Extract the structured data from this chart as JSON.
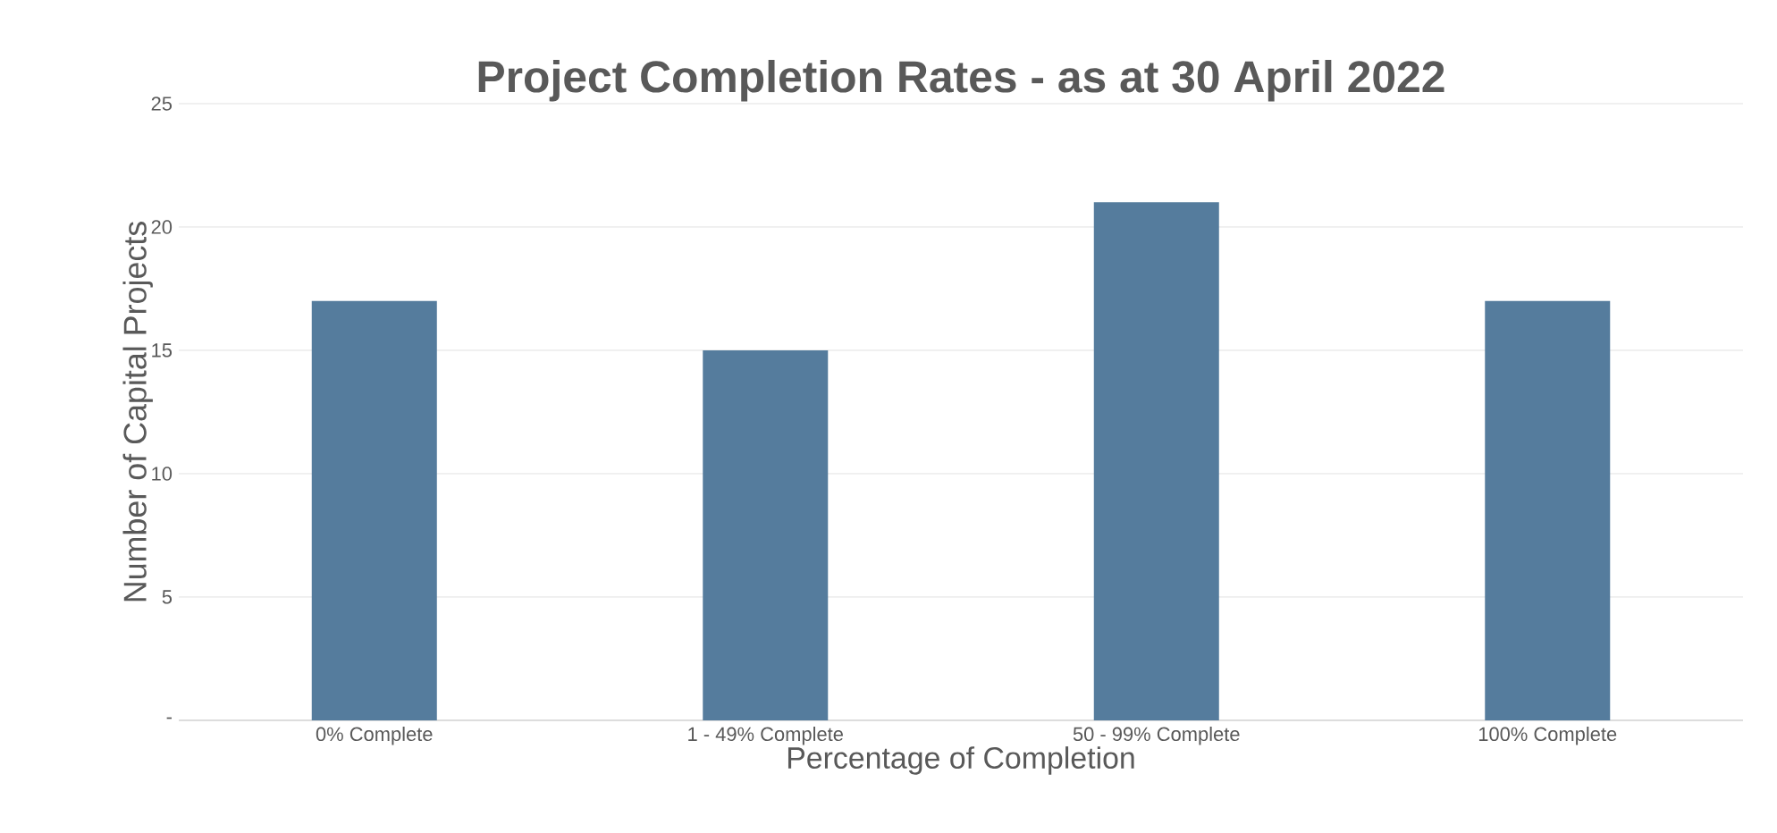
{
  "chart_data": {
    "type": "bar",
    "title": "Project Completion Rates - as at 30 April 2022",
    "xlabel": "Percentage of Completion",
    "ylabel": "Number of Capital Projects",
    "categories": [
      "0% Complete",
      "1 - 49% Complete",
      "50 - 99% Complete",
      "100% Complete"
    ],
    "values": [
      17,
      15,
      21,
      17
    ],
    "color": "#557c9d",
    "ylim": [
      0,
      25
    ],
    "yticks": [
      {
        "value": 0,
        "label": "-"
      },
      5,
      10,
      15,
      20,
      25
    ],
    "grid": "y"
  }
}
